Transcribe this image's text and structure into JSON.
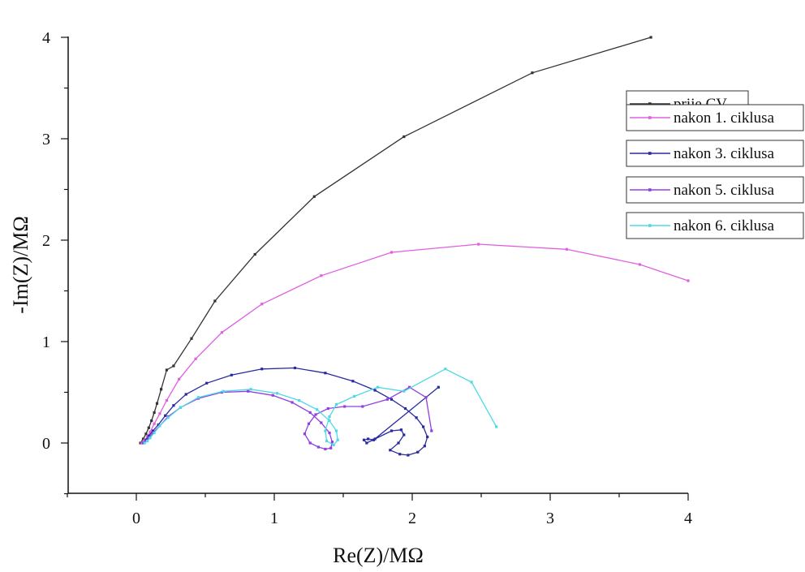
{
  "chart_data": {
    "type": "line",
    "xlabel": "Re(Z)/MΩ",
    "ylabel": "-Im(Z)/MΩ",
    "xlim": [
      -0.5,
      4.0
    ],
    "ylim": [
      -0.5,
      4.0
    ],
    "xticks": [
      0,
      1,
      2,
      3,
      4
    ],
    "yticks": [
      0,
      1,
      2,
      3,
      4
    ],
    "grid": false,
    "legend_position": "right",
    "series": [
      {
        "name": "prije CV",
        "color": "#333333",
        "x": [
          0.03,
          0.05,
          0.07,
          0.09,
          0.11,
          0.13,
          0.15,
          0.18,
          0.22,
          0.27,
          0.4,
          0.57,
          0.86,
          1.29,
          1.94,
          2.87,
          3.73
        ],
        "y": [
          0.0,
          0.04,
          0.09,
          0.15,
          0.22,
          0.3,
          0.39,
          0.53,
          0.72,
          0.76,
          1.03,
          1.4,
          1.86,
          2.43,
          3.02,
          3.65,
          4.0
        ]
      },
      {
        "name": "nakon 1. ciklusa",
        "color": "#e060e0",
        "x": [
          0.04,
          0.06,
          0.08,
          0.1,
          0.13,
          0.17,
          0.22,
          0.31,
          0.43,
          0.62,
          0.91,
          1.34,
          1.85,
          2.48,
          3.12,
          3.65,
          4.0
        ],
        "y": [
          0.0,
          0.03,
          0.06,
          0.11,
          0.19,
          0.29,
          0.42,
          0.63,
          0.83,
          1.09,
          1.37,
          1.65,
          1.88,
          1.96,
          1.91,
          1.76,
          1.6
        ]
      },
      {
        "name": "nakon 3. ciklusa",
        "color": "#2a2aa0",
        "x": [
          0.05,
          0.07,
          0.09,
          0.12,
          0.16,
          0.21,
          0.27,
          0.36,
          0.51,
          0.69,
          0.91,
          1.15,
          1.37,
          1.57,
          1.73,
          1.85,
          1.95,
          2.03,
          2.08,
          2.11,
          2.09,
          2.04,
          1.97,
          1.91,
          1.84,
          1.9,
          1.94,
          1.92,
          1.85,
          1.73,
          1.67,
          1.65,
          1.68,
          1.72,
          2.19
        ],
        "y": [
          0.0,
          0.03,
          0.07,
          0.12,
          0.18,
          0.27,
          0.37,
          0.48,
          0.59,
          0.67,
          0.73,
          0.74,
          0.69,
          0.61,
          0.52,
          0.43,
          0.34,
          0.25,
          0.16,
          0.06,
          -0.03,
          -0.09,
          -0.12,
          -0.11,
          -0.07,
          0.0,
          0.08,
          0.13,
          0.12,
          0.04,
          0.0,
          0.03,
          0.04,
          0.03,
          0.55
        ]
      },
      {
        "name": "nakon 5. ciklusa",
        "color": "#9040e0",
        "x": [
          0.05,
          0.07,
          0.09,
          0.12,
          0.17,
          0.23,
          0.32,
          0.45,
          0.62,
          0.81,
          0.99,
          1.13,
          1.26,
          1.34,
          1.4,
          1.42,
          1.41,
          1.37,
          1.32,
          1.26,
          1.22,
          1.25,
          1.3,
          1.39,
          1.51,
          1.64,
          1.82,
          1.98,
          2.1,
          2.14
        ],
        "y": [
          0.0,
          0.02,
          0.05,
          0.1,
          0.17,
          0.26,
          0.35,
          0.44,
          0.5,
          0.51,
          0.47,
          0.4,
          0.3,
          0.2,
          0.1,
          0.01,
          -0.05,
          -0.06,
          -0.04,
          0.0,
          0.09,
          0.19,
          0.28,
          0.34,
          0.36,
          0.36,
          0.43,
          0.55,
          0.45,
          0.12
        ]
      },
      {
        "name": "nakon 6. ciklusa",
        "color": "#50d8e8",
        "x": [
          0.06,
          0.08,
          0.1,
          0.13,
          0.17,
          0.23,
          0.32,
          0.45,
          0.63,
          0.83,
          1.02,
          1.18,
          1.31,
          1.4,
          1.45,
          1.46,
          1.43,
          1.38,
          1.37,
          1.4,
          1.45,
          1.58,
          1.75,
          1.94,
          2.24,
          2.43,
          2.61
        ],
        "y": [
          0.0,
          0.02,
          0.05,
          0.1,
          0.17,
          0.25,
          0.35,
          0.45,
          0.51,
          0.53,
          0.49,
          0.42,
          0.33,
          0.22,
          0.12,
          0.03,
          -0.02,
          0.02,
          0.12,
          0.26,
          0.38,
          0.46,
          0.55,
          0.51,
          0.73,
          0.6,
          0.16
        ]
      }
    ]
  }
}
